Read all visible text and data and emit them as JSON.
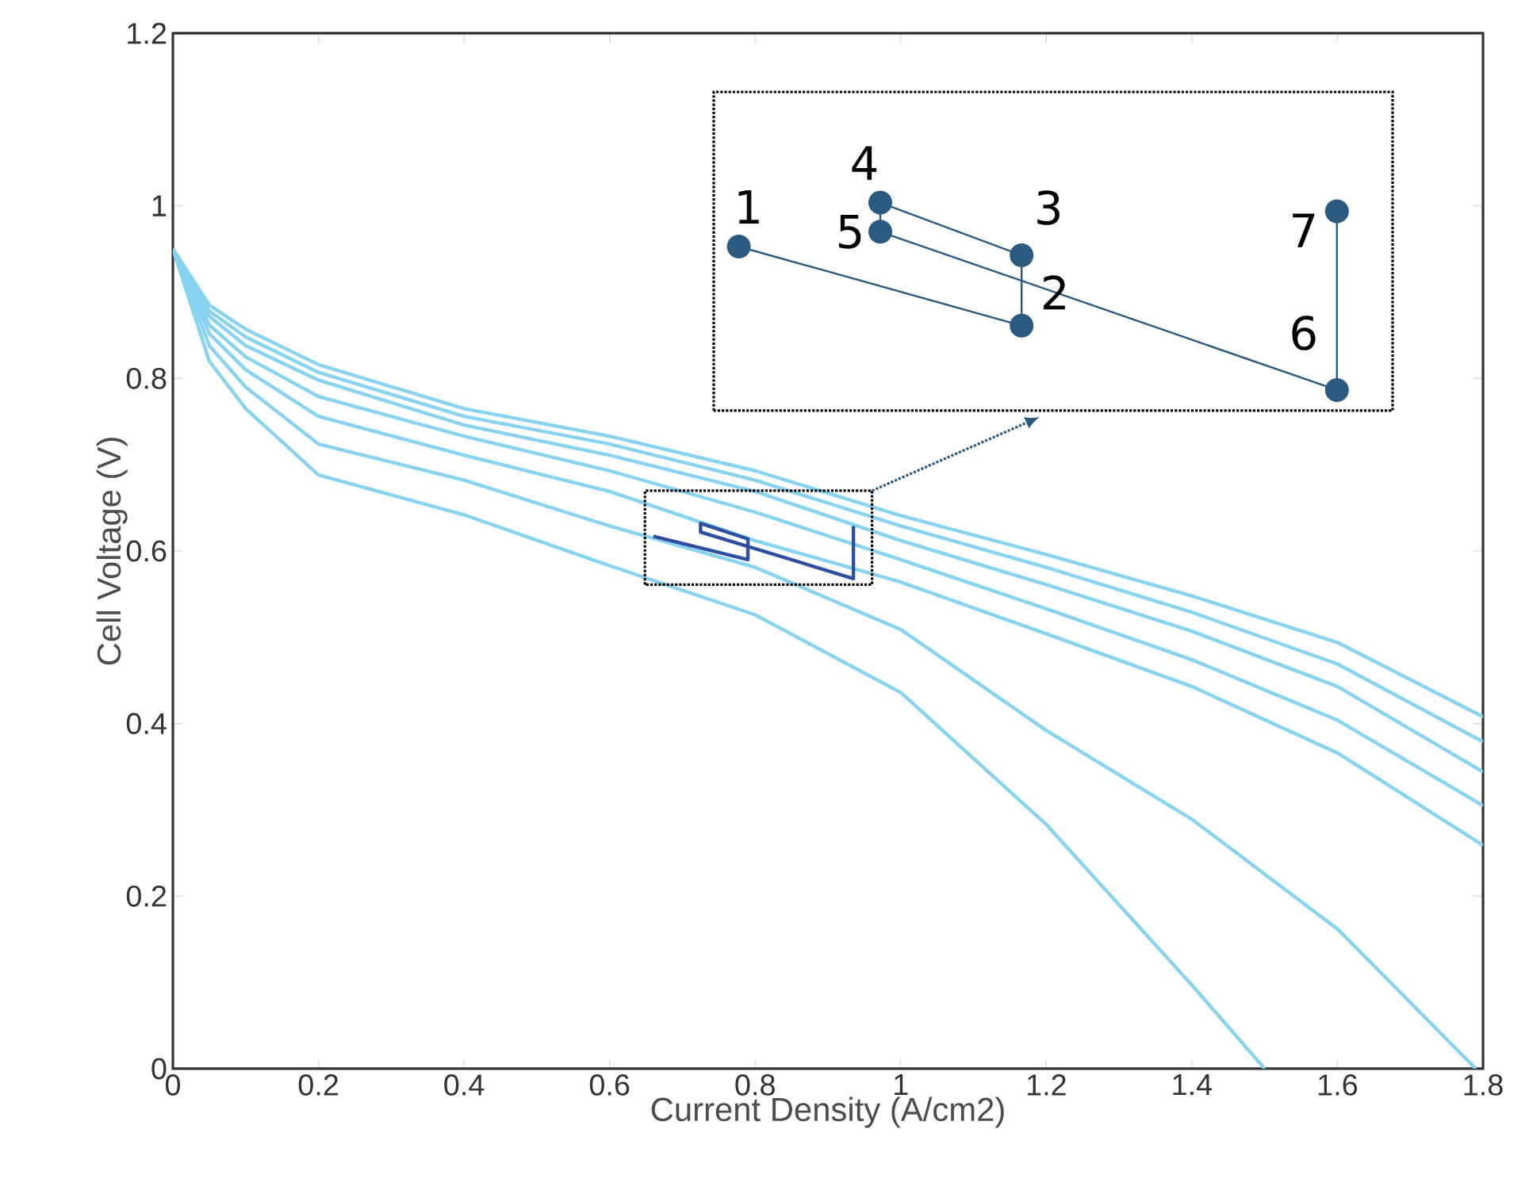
{
  "chart_data": {
    "type": "line",
    "xlabel": "Current Density (A/cm2)",
    "ylabel": "Cell Voltage (V)",
    "xlim": [
      0,
      1.8
    ],
    "ylim": [
      0,
      1.2
    ],
    "xticks": [
      0,
      0.2,
      0.4,
      0.6,
      0.8,
      1,
      1.2,
      1.4,
      1.6,
      1.8
    ],
    "yticks": [
      0,
      0.2,
      0.4,
      0.6,
      0.8,
      1,
      1.2
    ],
    "marker": "none",
    "line_style": "solid",
    "x": [
      0,
      0.05,
      0.1,
      0.2,
      0.4,
      0.6,
      0.8,
      1.0,
      1.2,
      1.4,
      1.6,
      1.8
    ],
    "series": [
      {
        "color": "#87d3f0",
        "values": [
          0.95,
          0.885,
          0.857,
          0.816,
          0.765,
          0.733,
          0.693,
          0.641,
          0.596,
          0.548,
          0.494,
          0.408
        ]
      },
      {
        "color": "#87d3f0",
        "values": [
          0.95,
          0.878,
          0.848,
          0.807,
          0.756,
          0.724,
          0.682,
          0.629,
          0.581,
          0.529,
          0.469,
          0.379
        ]
      },
      {
        "color": "#87d3f0",
        "values": [
          0.95,
          0.872,
          0.838,
          0.798,
          0.746,
          0.711,
          0.669,
          0.612,
          0.561,
          0.507,
          0.443,
          0.344
        ]
      },
      {
        "color": "#87d3f0",
        "values": [
          0.95,
          0.862,
          0.825,
          0.779,
          0.733,
          0.693,
          0.645,
          0.59,
          0.533,
          0.474,
          0.404,
          0.305
        ]
      },
      {
        "color": "#87d3f0",
        "values": [
          0.95,
          0.852,
          0.81,
          0.756,
          0.711,
          0.669,
          0.612,
          0.564,
          0.504,
          0.443,
          0.366,
          0.259
        ]
      },
      {
        "color": "#87d3f0",
        "x": [
          0,
          0.05,
          0.1,
          0.2,
          0.4,
          0.6,
          0.8,
          1.0,
          1.2,
          1.4,
          1.6,
          1.79
        ],
        "values": [
          0.95,
          0.838,
          0.79,
          0.724,
          0.682,
          0.629,
          0.581,
          0.509,
          0.392,
          0.289,
          0.162,
          0
        ]
      },
      {
        "color": "#87d3f0",
        "x": [
          0,
          0.05,
          0.1,
          0.2,
          0.4,
          0.6,
          0.8,
          1.0,
          1.2,
          1.4,
          1.5
        ],
        "values": [
          0.95,
          0.82,
          0.765,
          0.688,
          0.642,
          0.583,
          0.526,
          0.436,
          0.283,
          0.097,
          0
        ]
      },
      {
        "color": "#2e4fa0",
        "x": [
          0.66,
          0.79,
          0.79,
          0.725,
          0.725,
          0.935,
          0.935
        ],
        "values": [
          0.617,
          0.59,
          0.614,
          0.632,
          0.622,
          0.568,
          0.629
        ]
      }
    ],
    "annotations": [
      "1",
      "2",
      "3",
      "4",
      "5",
      "6",
      "7"
    ]
  }
}
